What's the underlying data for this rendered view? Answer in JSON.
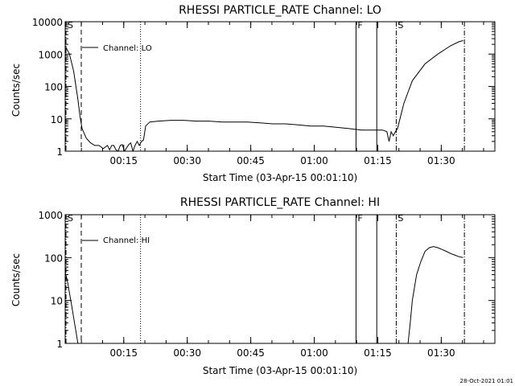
{
  "footer": {
    "date_stamp": "28-Oct-2021 01:01"
  },
  "chart_data": [
    {
      "type": "line",
      "title": "RHESSI PARTICLE_RATE Channel: LO",
      "xlabel": "Start Time (03-Apr-15 00:01:10)",
      "ylabel": "Counts/sec",
      "yscale": "log",
      "ylim": [
        1,
        10000
      ],
      "xlim_min": [
        0,
        101.5
      ],
      "x_units": "minutes after 00:01:10",
      "xticks": [
        "00:15",
        "00:30",
        "00:45",
        "01:00",
        "01:15",
        "01:30"
      ],
      "yticks": [
        "1",
        "10",
        "100",
        "1000",
        "10000"
      ],
      "legend": "Channel: LO",
      "legend_position": "top-left",
      "markers": [
        {
          "label": "S",
          "style": "dash-dot",
          "x": 0
        },
        {
          "label": "",
          "style": "dashed",
          "x": 3.8
        },
        {
          "label": "",
          "style": "dotted",
          "x": 17.8
        },
        {
          "label": "F",
          "style": "solid",
          "x": 68.7
        },
        {
          "label": "",
          "style": "solid",
          "x": 73.6
        },
        {
          "label": "S",
          "style": "dash-dot",
          "x": 78.2
        },
        {
          "label": "",
          "style": "dash-dot",
          "x": 94.3
        }
      ],
      "series": [
        {
          "x": [
            0,
            1,
            2,
            3,
            3.5,
            4,
            5,
            6,
            7,
            8,
            9,
            10,
            10.5,
            11,
            11.5,
            12,
            12.5,
            13,
            13.5,
            14,
            15,
            15.5,
            16,
            16.5,
            17,
            17.5,
            18,
            18.5,
            19,
            20,
            22,
            25,
            28,
            31,
            34,
            37,
            40,
            43,
            46,
            49,
            52,
            55,
            58,
            61,
            64,
            67,
            70,
            73,
            75,
            76,
            76.5,
            77,
            77.5,
            78,
            78.5,
            80,
            82,
            85,
            88,
            91,
            93,
            94
          ],
          "y": [
            1800,
            1000,
            300,
            40,
            12,
            5,
            2.5,
            1.8,
            1.5,
            1.5,
            1.2,
            1.5,
            1.1,
            1.5,
            1.5,
            1.1,
            1.0,
            1.5,
            1.6,
            1.0,
            1.6,
            1.8,
            1.0,
            1.5,
            2.0,
            1.5,
            2.0,
            2.2,
            6,
            8,
            8.5,
            9,
            9,
            8.5,
            8.5,
            8,
            8,
            8,
            7.5,
            7,
            7,
            6.5,
            6,
            6,
            5.5,
            5,
            4.5,
            4.5,
            4.5,
            4,
            2,
            4,
            3,
            4,
            5,
            30,
            150,
            500,
            1000,
            1800,
            2400,
            2600
          ]
        }
      ]
    },
    {
      "type": "line",
      "title": "RHESSI PARTICLE_RATE Channel: HI",
      "xlabel": "Start Time (03-Apr-15 00:01:10)",
      "ylabel": "Counts/sec",
      "yscale": "log",
      "ylim": [
        1,
        1000
      ],
      "xlim_min": [
        0,
        101.5
      ],
      "x_units": "minutes after 00:01:10",
      "xticks": [
        "00:15",
        "00:30",
        "00:45",
        "01:00",
        "01:15",
        "01:30"
      ],
      "yticks": [
        "1",
        "10",
        "100",
        "1000"
      ],
      "legend": "Channel: HI",
      "legend_position": "top-left",
      "markers": [
        {
          "label": "S",
          "style": "dash-dot",
          "x": 0
        },
        {
          "label": "",
          "style": "dashed",
          "x": 3.8
        },
        {
          "label": "",
          "style": "dotted",
          "x": 17.8
        },
        {
          "label": "F",
          "style": "solid",
          "x": 68.7
        },
        {
          "label": "",
          "style": "solid",
          "x": 73.6
        },
        {
          "label": "S",
          "style": "dash-dot",
          "x": 78.2
        },
        {
          "label": "",
          "style": "dash-dot",
          "x": 94.3
        }
      ],
      "series": [
        {
          "x": [
            0,
            0.5,
            1,
            1.5,
            2,
            2.5,
            3
          ],
          "y": [
            45,
            30,
            15,
            8,
            4,
            2,
            1
          ]
        },
        {
          "x": [
            81,
            81.5,
            82,
            83,
            84,
            85,
            86,
            87,
            88,
            89,
            90,
            91,
            92,
            93,
            94
          ],
          "y": [
            1,
            3,
            10,
            40,
            80,
            140,
            170,
            180,
            170,
            155,
            140,
            125,
            115,
            105,
            100
          ]
        }
      ]
    }
  ]
}
